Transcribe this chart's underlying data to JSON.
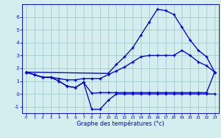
{
  "title": "Graphe des températures (°c)",
  "background_color": "#d4eef0",
  "grid_color": "#a0c8cc",
  "line_color": "#0000cc",
  "xlim": [
    -0.5,
    23.5
  ],
  "ylim": [
    -1.5,
    7.0
  ],
  "yticks": [
    -1,
    0,
    1,
    2,
    3,
    4,
    5,
    6
  ],
  "xticks": [
    0,
    1,
    2,
    3,
    4,
    5,
    6,
    7,
    8,
    9,
    10,
    11,
    12,
    13,
    14,
    15,
    16,
    17,
    18,
    19,
    20,
    21,
    22,
    23
  ],
  "line_peak_x": [
    0,
    10,
    11,
    12,
    13,
    14,
    15,
    16,
    17,
    18,
    19,
    20,
    21,
    22,
    23
  ],
  "line_peak_y": [
    1.7,
    1.6,
    2.3,
    2.9,
    3.6,
    4.6,
    5.6,
    6.6,
    6.5,
    6.2,
    5.2,
    4.2,
    3.4,
    2.9,
    1.7
  ],
  "line_mean_x": [
    0,
    1,
    2,
    3,
    4,
    5,
    6,
    7,
    8,
    9,
    10,
    11,
    12,
    13,
    14,
    15,
    16,
    17,
    18,
    19,
    20,
    21,
    22,
    23
  ],
  "line_mean_y": [
    1.7,
    1.5,
    1.3,
    1.3,
    1.2,
    1.1,
    1.1,
    1.2,
    1.2,
    1.2,
    1.5,
    1.8,
    2.1,
    2.5,
    2.9,
    3.0,
    3.0,
    3.0,
    3.0,
    3.4,
    3.0,
    2.5,
    2.2,
    1.7
  ],
  "line_dip_x": [
    0,
    1,
    2,
    3,
    4,
    5,
    6,
    7,
    8,
    9,
    10,
    11,
    12,
    13,
    14,
    15,
    16,
    17,
    18,
    19,
    20,
    21,
    22,
    23
  ],
  "line_dip_y": [
    1.7,
    1.5,
    1.3,
    1.3,
    1.0,
    0.6,
    0.5,
    0.9,
    -1.2,
    -1.2,
    -0.5,
    0.0,
    0.0,
    0.0,
    0.0,
    0.0,
    0.0,
    0.0,
    0.0,
    0.0,
    0.0,
    0.0,
    0.0,
    0.0
  ],
  "line_flat_x": [
    0,
    1,
    2,
    3,
    4,
    5,
    6,
    7,
    8,
    9,
    10,
    11,
    12,
    13,
    14,
    15,
    16,
    17,
    18,
    19,
    20,
    21,
    22,
    23
  ],
  "line_flat_y": [
    1.7,
    1.5,
    1.3,
    1.3,
    1.0,
    0.6,
    0.5,
    0.9,
    0.05,
    0.1,
    0.1,
    0.1,
    0.1,
    0.1,
    0.1,
    0.1,
    0.1,
    0.1,
    0.1,
    0.1,
    0.1,
    0.1,
    0.1,
    1.7
  ]
}
